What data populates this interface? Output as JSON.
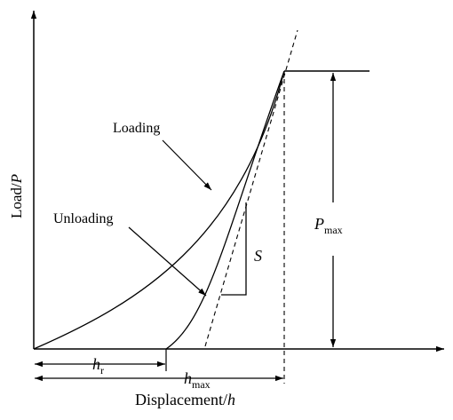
{
  "labels": {
    "loading": "Loading",
    "unloading": "Unloading",
    "y_axis": {
      "main": "Load/",
      "var": "P"
    },
    "x_axis": {
      "main": "Displacement/",
      "var": "h"
    },
    "stiffness": "S",
    "p_max": {
      "var": "P",
      "sub": "max"
    },
    "h_r": {
      "var": "h",
      "sub": "r"
    },
    "h_max": {
      "var": "h",
      "sub": "max"
    }
  }
}
